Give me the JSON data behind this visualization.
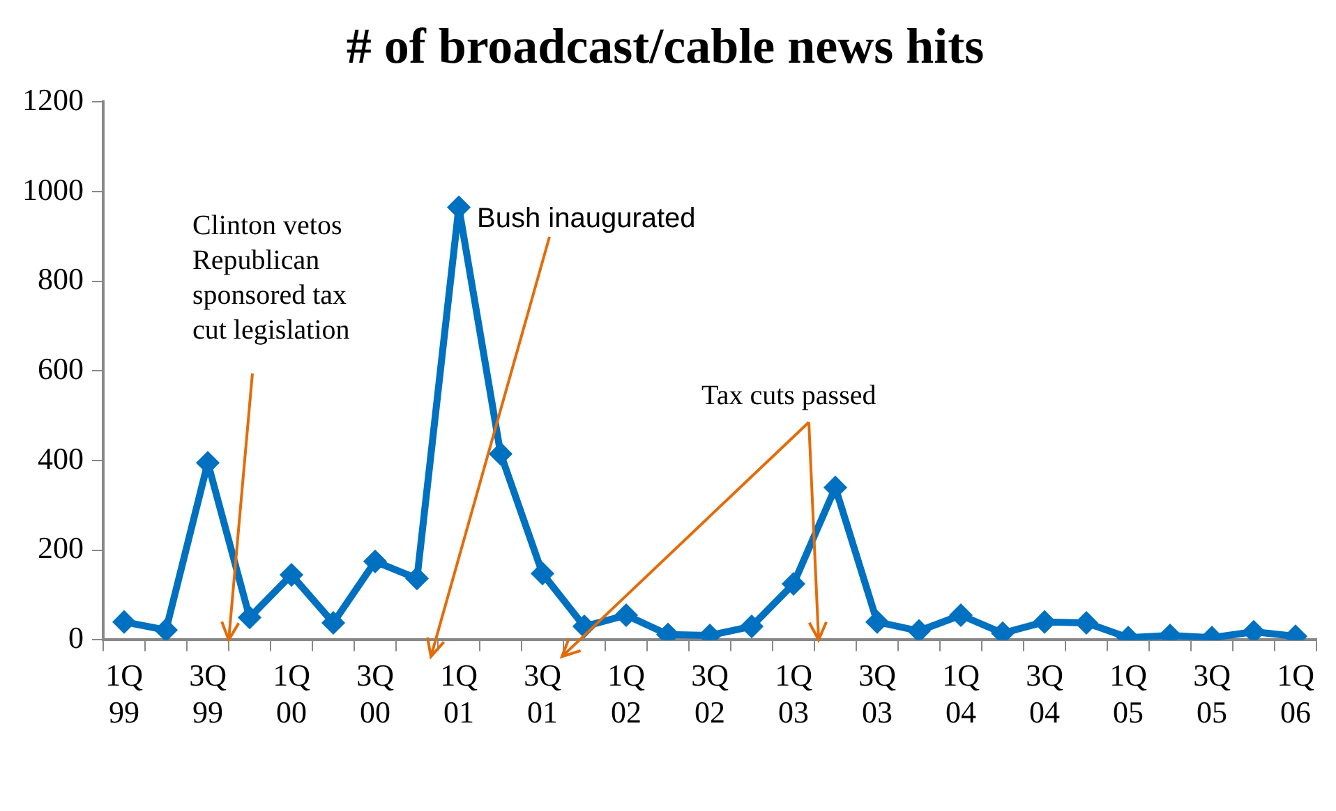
{
  "chart_data": {
    "type": "line",
    "title": "# of broadcast/cable news hits",
    "categories": [
      "1Q 99",
      null,
      "3Q 99",
      null,
      "1Q 00",
      null,
      "3Q 00",
      null,
      "1Q 01",
      null,
      "3Q 01",
      null,
      "1Q 02",
      null,
      "3Q 02",
      null,
      "1Q 03",
      null,
      "3Q 03",
      null,
      "1Q 04",
      null,
      "3Q 04",
      null,
      "1Q 05",
      null,
      "3Q 05",
      null,
      "1Q 06"
    ],
    "series": [
      {
        "color": "#0070c0",
        "values": [
          40,
          22,
          395,
          50,
          145,
          38,
          175,
          137,
          965,
          415,
          148,
          30,
          55,
          12,
          10,
          30,
          125,
          340,
          40,
          20,
          55,
          15,
          40,
          38,
          5,
          10,
          5,
          18,
          8
        ]
      }
    ],
    "ylim": [
      0,
      1200
    ],
    "yticks": [
      0,
      200,
      400,
      600,
      800,
      1000,
      1200
    ],
    "grid": false,
    "legend": false,
    "marker": "diamond",
    "line_style": "solid",
    "annotations": [
      "Clinton vetos Republican sponsored tax cut legislation",
      "Bush inaugurated",
      "Tax cuts passed"
    ]
  }
}
